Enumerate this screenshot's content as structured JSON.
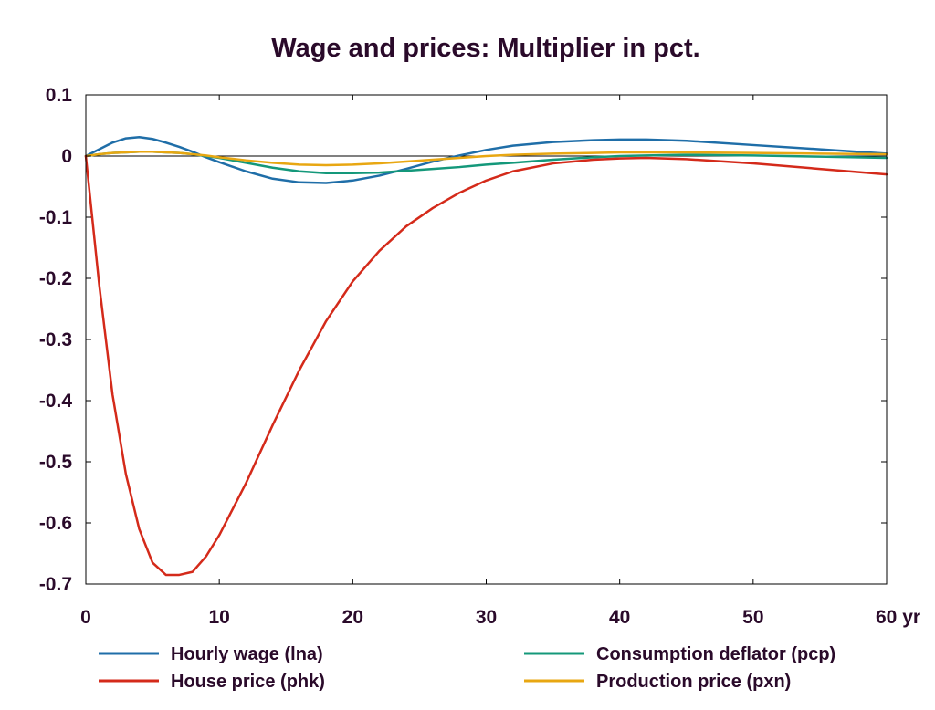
{
  "chart_data": {
    "type": "line",
    "title": "Wage and prices: Multiplier in pct.",
    "xlabel": "",
    "ylabel": "",
    "xlim": [
      0,
      60
    ],
    "ylim": [
      -0.7,
      0.1
    ],
    "x_ticks": [
      0,
      10,
      20,
      30,
      40,
      50,
      60
    ],
    "x_tick_labels": [
      "0",
      "10",
      "20",
      "30",
      "40",
      "50",
      "60 yr"
    ],
    "y_ticks": [
      0.1,
      0,
      -0.1,
      -0.2,
      -0.3,
      -0.4,
      -0.5,
      -0.6,
      -0.7
    ],
    "y_tick_labels": [
      "0.1",
      "0",
      "-0.1",
      "-0.2",
      "-0.3",
      "-0.4",
      "-0.5",
      "-0.6",
      "-0.7"
    ],
    "grid": false,
    "zero_line": true,
    "legend": "bottom",
    "x": [
      0,
      1,
      2,
      3,
      4,
      5,
      6,
      7,
      8,
      9,
      10,
      12,
      14,
      16,
      18,
      20,
      22,
      24,
      26,
      28,
      30,
      32,
      35,
      38,
      40,
      42,
      45,
      50,
      55,
      60
    ],
    "series": [
      {
        "name": "Hourly wage (lna)",
        "color": "#1f6ea8",
        "values": [
          0,
          0.011,
          0.022,
          0.029,
          0.031,
          0.028,
          0.022,
          0.015,
          0.007,
          -0.002,
          -0.01,
          -0.025,
          -0.037,
          -0.043,
          -0.044,
          -0.04,
          -0.032,
          -0.021,
          -0.009,
          0.001,
          0.01,
          0.017,
          0.023,
          0.026,
          0.027,
          0.027,
          0.025,
          0.018,
          0.011,
          0.004
        ]
      },
      {
        "name": "Consumption deflator (pcp)",
        "color": "#14987a",
        "values": [
          0,
          0.003,
          0.005,
          0.006,
          0.007,
          0.007,
          0.006,
          0.005,
          0.003,
          0,
          -0.003,
          -0.011,
          -0.019,
          -0.025,
          -0.028,
          -0.028,
          -0.027,
          -0.024,
          -0.021,
          -0.018,
          -0.014,
          -0.011,
          -0.006,
          -0.002,
          0,
          0.001,
          0.002,
          0.001,
          -0.001,
          -0.003
        ]
      },
      {
        "name": "House price (phk)",
        "color": "#d42a1a",
        "values": [
          0,
          -0.21,
          -0.39,
          -0.52,
          -0.61,
          -0.665,
          -0.685,
          -0.685,
          -0.68,
          -0.655,
          -0.62,
          -0.535,
          -0.44,
          -0.35,
          -0.27,
          -0.205,
          -0.155,
          -0.115,
          -0.085,
          -0.06,
          -0.04,
          -0.025,
          -0.012,
          -0.006,
          -0.004,
          -0.003,
          -0.005,
          -0.012,
          -0.021,
          -0.03
        ]
      },
      {
        "name": "Production price (pxn)",
        "color": "#e8a712",
        "values": [
          0,
          0.003,
          0.005,
          0.006,
          0.007,
          0.007,
          0.006,
          0.005,
          0.003,
          0.001,
          -0.002,
          -0.007,
          -0.011,
          -0.014,
          -0.015,
          -0.014,
          -0.012,
          -0.009,
          -0.006,
          -0.003,
          0,
          0.002,
          0.004,
          0.005,
          0.006,
          0.006,
          0.006,
          0.005,
          0.004,
          0.003
        ]
      }
    ]
  }
}
